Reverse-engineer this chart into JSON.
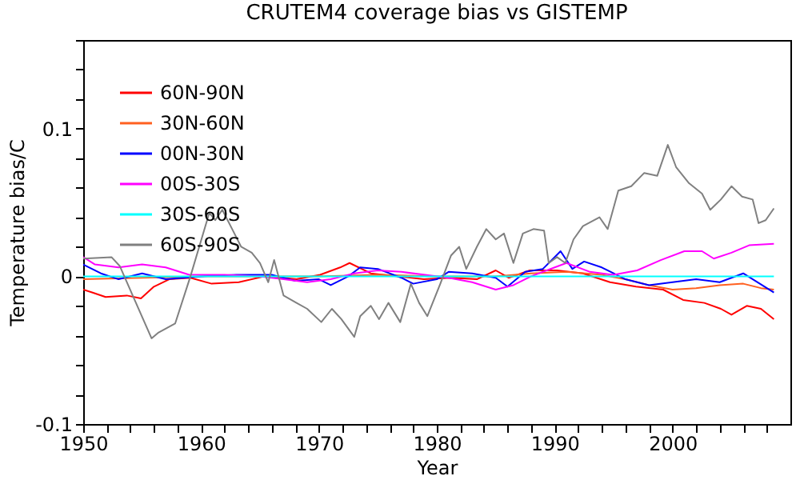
{
  "chart_data": {
    "type": "line",
    "title": "CRUTEM4 coverage bias vs GISTEMP",
    "xlabel": "Year",
    "ylabel": "Temperature bias/C",
    "xlim": [
      1950,
      2010
    ],
    "ylim": [
      -0.1,
      0.16
    ],
    "xticks": [
      1950,
      {
        "value": 1952,
        "label": null
      },
      {
        "value": 1954,
        "label": null
      },
      {
        "value": 1956,
        "label": null
      },
      {
        "value": 1958,
        "label": null
      },
      1960,
      {
        "value": 1962,
        "label": null
      },
      {
        "value": 1964,
        "label": null
      },
      {
        "value": 1966,
        "label": null
      },
      {
        "value": 1968,
        "label": null
      },
      1970,
      {
        "value": 1972,
        "label": null
      },
      {
        "value": 1974,
        "label": null
      },
      {
        "value": 1976,
        "label": null
      },
      {
        "value": 1978,
        "label": null
      },
      1980,
      {
        "value": 1982,
        "label": null
      },
      {
        "value": 1984,
        "label": null
      },
      {
        "value": 1986,
        "label": null
      },
      {
        "value": 1988,
        "label": null
      },
      1990,
      {
        "value": 1992,
        "label": null
      },
      {
        "value": 1994,
        "label": null
      },
      {
        "value": 1996,
        "label": null
      },
      {
        "value": 1998,
        "label": null
      },
      2000,
      {
        "value": 2002,
        "label": null
      },
      {
        "value": 2004,
        "label": null
      },
      {
        "value": 2006,
        "label": null
      },
      {
        "value": 2008,
        "label": null
      }
    ],
    "yticks": [
      -0.1,
      {
        "value": -0.08,
        "label": null
      },
      {
        "value": -0.06,
        "label": null
      },
      {
        "value": -0.04,
        "label": null
      },
      {
        "value": -0.02,
        "label": null
      },
      0,
      {
        "value": 0.02,
        "label": null
      },
      {
        "value": 0.04,
        "label": null
      },
      {
        "value": 0.06,
        "label": null
      },
      {
        "value": 0.08,
        "label": null
      },
      0.1,
      {
        "value": 0.12,
        "label": null
      },
      {
        "value": 0.14,
        "label": null
      },
      {
        "value": 0.16,
        "label": null
      }
    ],
    "grid": false,
    "legend": "top left",
    "series": [
      {
        "name": "60N-90N",
        "color": "#ff0000",
        "x": [
          1950,
          1950.8,
          1951.9,
          1953.7,
          1954.9,
          1956,
          1957.3,
          1959.1,
          1960.9,
          1963.2,
          1965.4,
          1968.1,
          1970.1,
          1971.8,
          1972.6,
          1974.4,
          1976.7,
          1978.9,
          1981.2,
          1983.4,
          1985,
          1986.1,
          1987.9,
          1990.2,
          1992.4,
          1994.7,
          1996.9,
          1999.2,
          2000.9,
          2002.7,
          2004.1,
          2005,
          2006.3,
          2007.5,
          2008.6
        ],
        "values": [
          -0.009,
          -0.011,
          -0.014,
          -0.013,
          -0.015,
          -0.007,
          -0.002,
          -0.001,
          -0.005,
          -0.004,
          0,
          -0.002,
          0.001,
          0.006,
          0.009,
          0.002,
          0,
          -0.002,
          -0.001,
          -0.002,
          0.004,
          -0.001,
          0.004,
          0.004,
          0.002,
          -0.004,
          -0.007,
          -0.009,
          -0.016,
          -0.018,
          -0.022,
          -0.026,
          -0.02,
          -0.022,
          -0.029
        ]
      },
      {
        "name": "30N-60N",
        "color": "#ff6020",
        "x": [
          1950,
          1955,
          1960,
          1965,
          1970,
          1975,
          1980,
          1985,
          1988,
          1991,
          1994,
          1996,
          1998,
          2000,
          2002,
          2004,
          2006,
          2007.5,
          2008.6
        ],
        "values": [
          -0.002,
          -0.001,
          0,
          0,
          0,
          0.001,
          0,
          0,
          0.002,
          0.003,
          0.001,
          -0.002,
          -0.006,
          -0.009,
          -0.008,
          -0.006,
          -0.005,
          -0.008,
          -0.009
        ]
      },
      {
        "name": "00N-30N",
        "color": "#0000ff",
        "x": [
          1950,
          1951.5,
          1953,
          1955,
          1957,
          1960,
          1963,
          1966,
          1968,
          1970,
          1971,
          1972.5,
          1973.5,
          1975,
          1977,
          1978,
          1980,
          1981,
          1983,
          1985,
          1986,
          1987.5,
          1989,
          1990.5,
          1991.5,
          1992.5,
          1994,
          1996,
          1998,
          2000,
          2002,
          2004,
          2006,
          2007,
          2008.6
        ],
        "values": [
          0.008,
          0.002,
          -0.002,
          0.002,
          -0.002,
          0,
          0.001,
          0.001,
          -0.003,
          -0.002,
          -0.006,
          0,
          0.006,
          0.005,
          -0.001,
          -0.005,
          -0.002,
          0.003,
          0.002,
          -0.001,
          -0.007,
          0.003,
          0.005,
          0.017,
          0.005,
          0.01,
          0.006,
          -0.002,
          -0.006,
          -0.004,
          -0.002,
          -0.004,
          0.002,
          -0.003,
          -0.011
        ]
      },
      {
        "name": "00S-30S",
        "color": "#ff00ff",
        "x": [
          1950,
          1951,
          1953,
          1955,
          1957,
          1959,
          1962,
          1965,
          1967,
          1969,
          1971,
          1973,
          1975,
          1977,
          1979,
          1981,
          1983,
          1985,
          1986.5,
          1988,
          1990,
          1991,
          1993,
          1995,
          1997,
          1999,
          2001,
          2002.5,
          2003.5,
          2005,
          2006.5,
          2008.6
        ],
        "values": [
          0.013,
          0.008,
          0.006,
          0.008,
          0.006,
          0.001,
          0.001,
          0,
          -0.002,
          -0.004,
          -0.002,
          0.002,
          0.004,
          0.003,
          0.001,
          -0.001,
          -0.004,
          -0.009,
          -0.006,
          0,
          0.006,
          0.009,
          0.003,
          0.001,
          0.004,
          0.011,
          0.017,
          0.017,
          0.012,
          0.016,
          0.021,
          0.022
        ]
      },
      {
        "name": "30S-60S",
        "color": "#00ffff",
        "x": [
          1950,
          1980,
          2008.6
        ],
        "values": [
          0,
          0,
          0
        ]
      },
      {
        "name": "60S-90S",
        "color": "#808080",
        "x": [
          1950,
          1952.4,
          1953.1,
          1954.2,
          1955.8,
          1956.4,
          1957.8,
          1959.1,
          1960.7,
          1961.2,
          1961.8,
          1962.7,
          1963.4,
          1964.3,
          1965,
          1965.7,
          1966.2,
          1967,
          1968.1,
          1969,
          1970.2,
          1971.1,
          1971.9,
          1973,
          1973.5,
          1974.4,
          1975.1,
          1975.9,
          1976.9,
          1977.8,
          1978.5,
          1979.2,
          1980.3,
          1981.2,
          1981.9,
          1982.5,
          1983.4,
          1984.2,
          1985,
          1985.7,
          1986.5,
          1987.3,
          1988.2,
          1989.1,
          1989.5,
          1990.2,
          1990.9,
          1991.6,
          1992.4,
          1993.8,
          1994.5,
          1995.4,
          1996.5,
          1997.6,
          1998.7,
          1999.6,
          2000.3,
          2001.4,
          2002.5,
          2003.2,
          2004.1,
          2005,
          2005.9,
          2006.8,
          2007.3,
          2007.9,
          2008.6
        ],
        "values": [
          0.012,
          0.013,
          0.007,
          -0.013,
          -0.042,
          -0.038,
          -0.032,
          0,
          0.043,
          0.038,
          0.045,
          0.031,
          0.02,
          0.016,
          0.009,
          -0.004,
          0.011,
          -0.013,
          -0.018,
          -0.022,
          -0.031,
          -0.022,
          -0.029,
          -0.041,
          -0.027,
          -0.02,
          -0.029,
          -0.018,
          -0.031,
          -0.005,
          -0.018,
          -0.027,
          -0.005,
          0.014,
          0.02,
          0.005,
          0.02,
          0.032,
          0.025,
          0.029,
          0.009,
          0.029,
          0.032,
          0.031,
          0.009,
          0.013,
          0.009,
          0.025,
          0.034,
          0.04,
          0.032,
          0.058,
          0.061,
          0.07,
          0.068,
          0.089,
          0.074,
          0.063,
          0.056,
          0.045,
          0.052,
          0.061,
          0.054,
          0.052,
          0.036,
          0.038,
          0.046
        ]
      }
    ]
  }
}
